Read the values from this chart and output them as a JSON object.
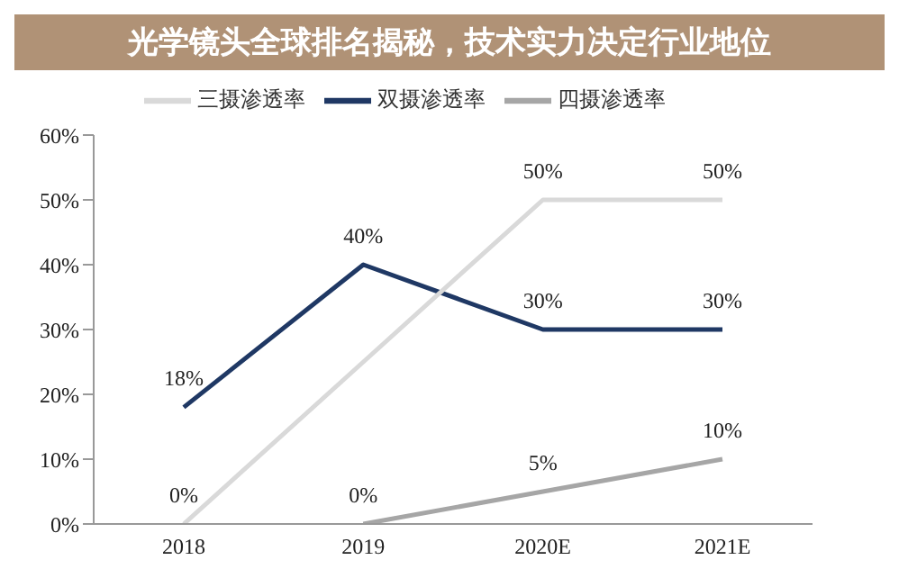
{
  "chart_data": {
    "type": "line",
    "title": "光学镜头全球排名揭秘，技术实力决定行业地位",
    "categories": [
      "2018",
      "2019",
      "2020E",
      "2021E"
    ],
    "series": [
      {
        "name": "双摄渗透率",
        "color": "#1f3864",
        "values": [
          18,
          40,
          30,
          30
        ],
        "value_labels": [
          "18%",
          "40%",
          "30%",
          "30%"
        ]
      },
      {
        "name": "三摄渗透率",
        "color": "#d9d9d9",
        "values": [
          0,
          25,
          50,
          50
        ],
        "value_labels": [
          "0%",
          null,
          "50%",
          "50%"
        ]
      },
      {
        "name": "四摄渗透率",
        "color": "#a6a6a6",
        "values": [
          null,
          0,
          5,
          10
        ],
        "value_labels": [
          null,
          "0%",
          "5%",
          "10%"
        ]
      }
    ],
    "ylim": [
      0,
      60
    ],
    "yticks": [
      {
        "value": 0,
        "label": "0%"
      },
      {
        "value": 10,
        "label": "10%"
      },
      {
        "value": 20,
        "label": "20%"
      },
      {
        "value": 30,
        "label": "30%"
      },
      {
        "value": 40,
        "label": "40%"
      },
      {
        "value": 50,
        "label": "50%"
      },
      {
        "value": 60,
        "label": "60%"
      }
    ],
    "grid": false,
    "legend": "top",
    "marker": "none",
    "line_style": "solid"
  }
}
